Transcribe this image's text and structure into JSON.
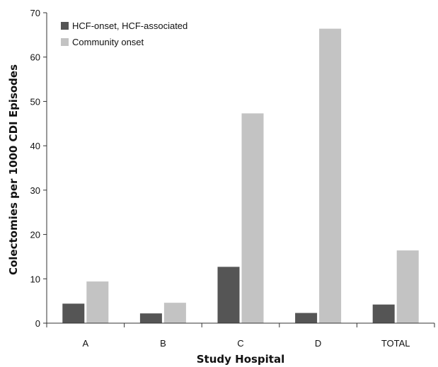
{
  "chart_data": {
    "type": "bar",
    "title": "",
    "xlabel": "Study Hospital",
    "ylabel": "Colectomies per 1000 CDI Episodes",
    "categories": [
      "A",
      "B",
      "C",
      "D",
      "TOTAL"
    ],
    "ylim": [
      0,
      70
    ],
    "yticks": [
      0,
      10,
      20,
      30,
      40,
      50,
      60,
      70
    ],
    "grid": false,
    "legend_position": "top-left",
    "series": [
      {
        "name": "HCF-onset, HCF-associated",
        "color": "#555555",
        "values": [
          4.4,
          2.2,
          12.7,
          2.3,
          4.2
        ]
      },
      {
        "name": "Community onset",
        "color": "#c3c3c3",
        "values": [
          9.4,
          4.6,
          47.3,
          66.4,
          16.4
        ]
      }
    ]
  }
}
